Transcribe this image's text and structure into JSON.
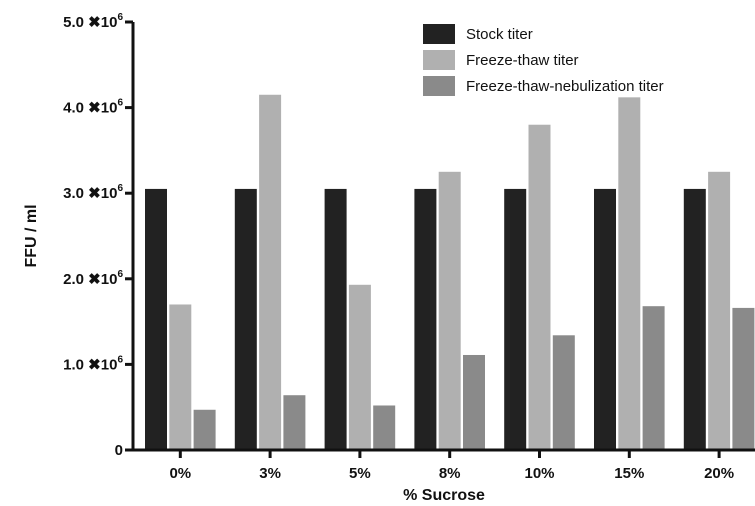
{
  "chart_data": {
    "type": "bar",
    "title": "",
    "xlabel": "% Sucrose",
    "ylabel": "FFU / ml",
    "categories": [
      "0%",
      "3%",
      "5%",
      "8%",
      "10%",
      "15%",
      "20%"
    ],
    "series": [
      {
        "name": "Stock titer",
        "color": "#222222",
        "values": [
          3050000,
          3050000,
          3050000,
          3050000,
          3050000,
          3050000,
          3050000
        ]
      },
      {
        "name": "Freeze-thaw titer",
        "color": "#b0b0b0",
        "values": [
          1700000,
          4150000,
          1930000,
          3250000,
          3800000,
          4120000,
          3250000
        ]
      },
      {
        "name": "Freeze-thaw-nebulization titer",
        "color": "#8a8a8a",
        "values": [
          470000,
          640000,
          520000,
          1110000,
          1340000,
          1680000,
          1660000
        ]
      }
    ],
    "ylim": [
      0,
      5000000
    ],
    "y_ticks": [
      {
        "value": 0,
        "label": "0"
      },
      {
        "value": 1000000,
        "label": "1.0 ✖10",
        "exp": "6"
      },
      {
        "value": 2000000,
        "label": "2.0 ✖10",
        "exp": "6"
      },
      {
        "value": 3000000,
        "label": "3.0 ✖10",
        "exp": "6"
      },
      {
        "value": 4000000,
        "label": "4.0 ✖10",
        "exp": "6"
      },
      {
        "value": 5000000,
        "label": "5.0 ✖10",
        "exp": "6"
      }
    ],
    "grid": false,
    "legend_position": "top-right"
  }
}
